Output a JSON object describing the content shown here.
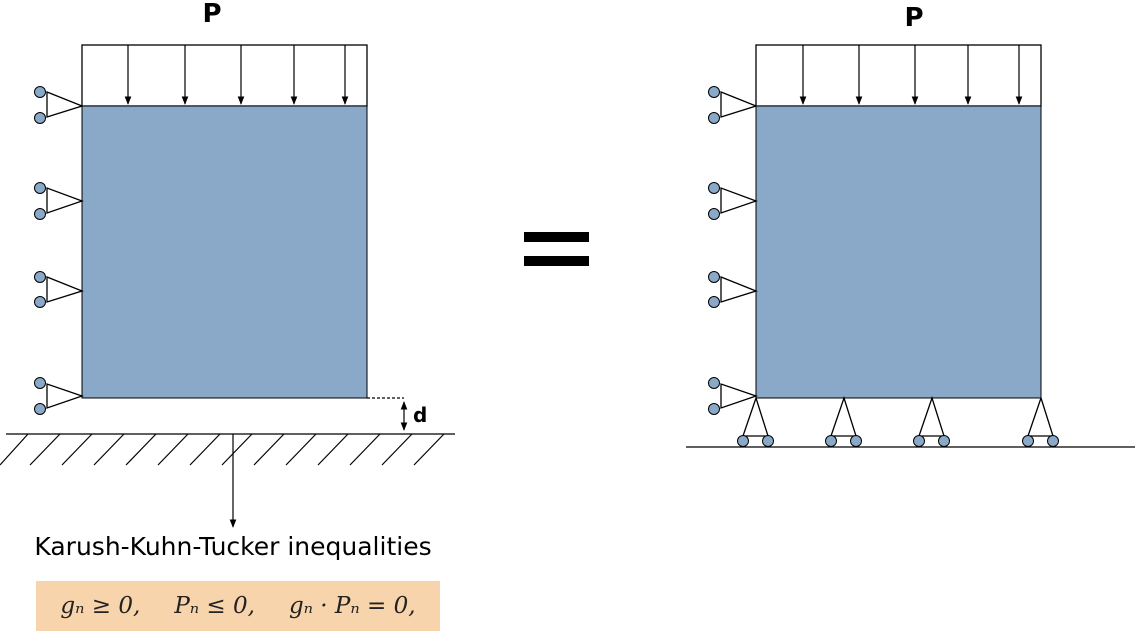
{
  "diagram": {
    "left": {
      "load_label": "P",
      "gap_label": "d",
      "caption": "Karush-Kuhn-Tucker inequalities",
      "inequalities": [
        "gₙ ≥ 0,",
        "Pₙ ≤ 0,",
        "gₙ · Pₙ = 0,"
      ]
    },
    "equals_symbol": "=",
    "right": {
      "load_label": "P"
    },
    "colors": {
      "block_fill": "#8aa9c9",
      "roller_fill": "#5e88c0",
      "kkt_box_fill": "#f8d4ac",
      "line": "#000000"
    }
  }
}
